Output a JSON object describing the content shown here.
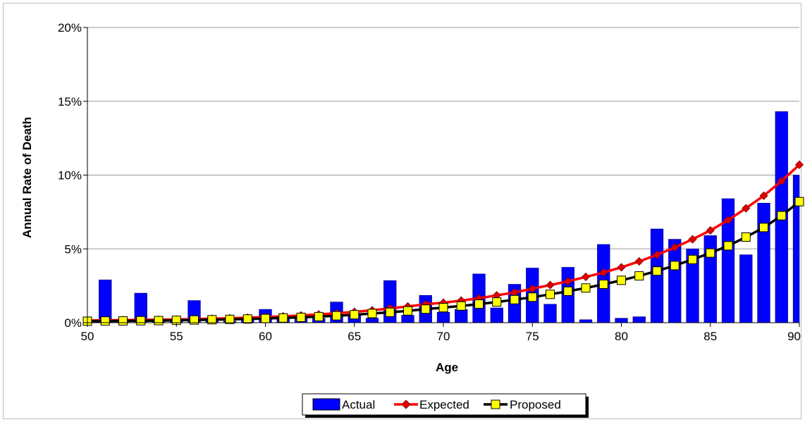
{
  "chart_data": {
    "type": "bar",
    "xlabel": "Age",
    "ylabel": "Annual Rate of Death",
    "ylim": [
      0,
      20
    ],
    "y_ticks": [
      "0%",
      "5%",
      "10%",
      "15%",
      "20%"
    ],
    "y_tick_values": [
      0,
      5,
      10,
      15,
      20
    ],
    "xlim": [
      50,
      90
    ],
    "x_ticks": [
      "50",
      "55",
      "60",
      "65",
      "70",
      "75",
      "80",
      "85",
      "90"
    ],
    "x_tick_values": [
      50,
      55,
      60,
      65,
      70,
      75,
      80,
      85,
      90
    ],
    "grid": "horizontal",
    "legend_position": "bottom-center",
    "x": [
      50,
      51,
      52,
      53,
      54,
      55,
      56,
      57,
      58,
      59,
      60,
      61,
      62,
      63,
      64,
      65,
      66,
      67,
      68,
      69,
      70,
      71,
      72,
      73,
      74,
      75,
      76,
      77,
      78,
      79,
      80,
      81,
      82,
      83,
      84,
      85,
      86,
      87,
      88,
      89,
      90
    ],
    "series": [
      {
        "name": "Actual",
        "kind": "bar",
        "color": "#0000ff",
        "values": [
          0.1,
          2.9,
          0.1,
          2.0,
          0.1,
          0.2,
          1.5,
          0.2,
          0.1,
          0.3,
          0.9,
          0.3,
          0.4,
          0.3,
          1.4,
          0.5,
          0.3,
          2.85,
          0.5,
          1.85,
          0.7,
          0.9,
          3.3,
          1.0,
          2.6,
          3.7,
          1.25,
          3.75,
          0.2,
          5.3,
          0.3,
          0.4,
          6.35,
          5.65,
          5.0,
          5.9,
          8.4,
          4.6,
          8.1,
          14.3,
          10.0
        ]
      },
      {
        "name": "Expected",
        "kind": "line",
        "color": "#ff0000",
        "marker": "diamond",
        "values": [
          0.15,
          0.16,
          0.17,
          0.19,
          0.2,
          0.22,
          0.24,
          0.27,
          0.3,
          0.34,
          0.38,
          0.43,
          0.49,
          0.56,
          0.64,
          0.73,
          0.84,
          0.97,
          1.1,
          1.25,
          1.35,
          1.5,
          1.65,
          1.85,
          2.05,
          2.3,
          2.55,
          2.8,
          3.1,
          3.4,
          3.75,
          4.15,
          4.6,
          5.1,
          5.65,
          6.25,
          6.95,
          7.75,
          8.6,
          9.6,
          10.7
        ]
      },
      {
        "name": "Proposed",
        "kind": "line",
        "color": "#000000",
        "marker": "square",
        "marker_color": "#ffff00",
        "values": [
          0.1,
          0.11,
          0.12,
          0.13,
          0.14,
          0.16,
          0.18,
          0.2,
          0.22,
          0.25,
          0.28,
          0.32,
          0.36,
          0.41,
          0.47,
          0.54,
          0.62,
          0.7,
          0.8,
          0.92,
          1.02,
          1.13,
          1.26,
          1.4,
          1.56,
          1.73,
          1.92,
          2.13,
          2.35,
          2.6,
          2.87,
          3.17,
          3.5,
          3.87,
          4.28,
          4.72,
          5.21,
          5.8,
          6.45,
          7.25,
          8.2
        ]
      }
    ]
  }
}
